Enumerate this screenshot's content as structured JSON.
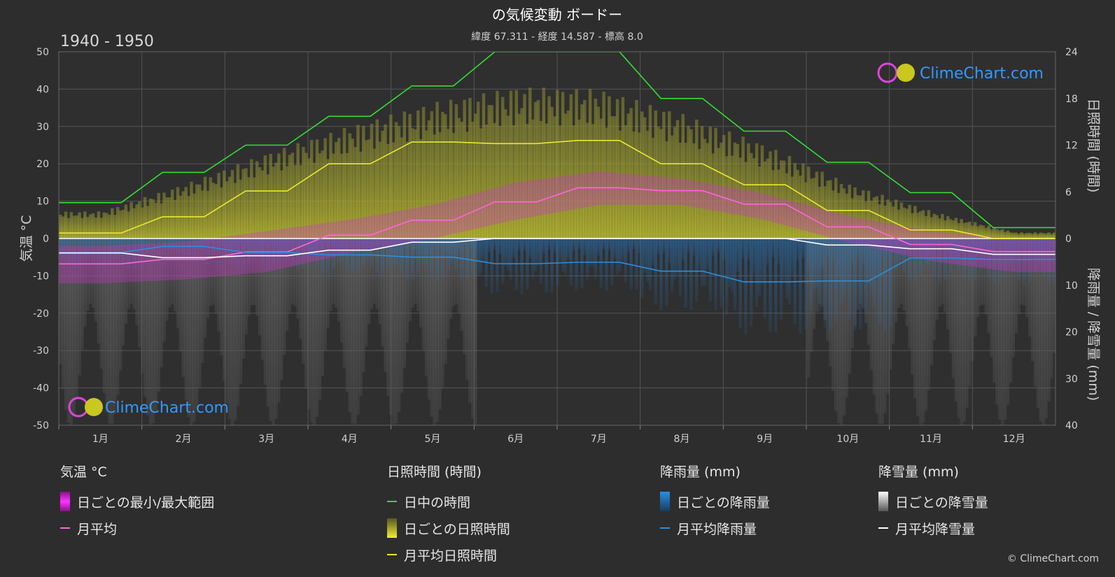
{
  "title": "の気候変動 ボードー",
  "subtitle": "緯度 67.311 - 経度 14.587 - 標高 8.0",
  "period": "1940 - 1950",
  "logo_text": "ClimeChart.com",
  "copyright": "© ClimeChart.com",
  "colors": {
    "background": "#2d2d2d",
    "daylight": "#33dd33",
    "sunshine_avg": "#e8e830",
    "sunshine_bar": "#b0b030",
    "temp_avg": "#ff66dd",
    "temp_range": "#cc33cc",
    "rain_avg": "#2a8fe0",
    "rain_bar": "#2a7fc8",
    "snow_avg": "#ffffff",
    "snow_bar": "#a0a0a0",
    "logo": "#3399ff"
  },
  "chart_data": {
    "type": "line",
    "months": [
      "1月",
      "2月",
      "3月",
      "4月",
      "5月",
      "6月",
      "7月",
      "8月",
      "9月",
      "10月",
      "11月",
      "12月"
    ],
    "left_axis": {
      "label": "気温 °C",
      "ticks": [
        50,
        40,
        30,
        20,
        10,
        0,
        -10,
        -20,
        -30,
        -40,
        -50
      ],
      "ylim": [
        -50,
        50
      ]
    },
    "right_axis_top": {
      "label": "日照時間 (時間)",
      "ticks": [
        24,
        18,
        12,
        6,
        0
      ],
      "ylim": [
        0,
        24
      ]
    },
    "right_axis_bottom": {
      "label": "降雨量 / 降雪量 (mm)",
      "ticks": [
        0,
        10,
        20,
        30,
        40
      ],
      "ylim": [
        0,
        40
      ]
    },
    "series": [
      {
        "name": "日中の時間",
        "unit": "hours",
        "values": [
          4.6,
          8.5,
          12.0,
          15.7,
          19.6,
          24.0,
          24.0,
          18.0,
          13.8,
          9.8,
          5.9,
          1.4
        ]
      },
      {
        "name": "月平均日照時間",
        "unit": "hours",
        "values": [
          0.7,
          2.8,
          6.1,
          9.6,
          12.4,
          12.2,
          12.6,
          9.6,
          6.9,
          3.6,
          1.1,
          0.0
        ]
      },
      {
        "name": "月平均",
        "unit": "°C",
        "values": [
          -6.8,
          -5.6,
          -3.6,
          0.9,
          4.9,
          9.8,
          13.6,
          12.8,
          9.2,
          3.1,
          -1.6,
          -3.5
        ]
      },
      {
        "name": "月平均降雨量",
        "unit": "mm",
        "values": [
          3.0,
          1.7,
          3.0,
          3.5,
          4.0,
          5.4,
          5.1,
          7.0,
          9.3,
          9.1,
          4.2,
          4.5
        ]
      },
      {
        "name": "月平均降雪量",
        "unit": "mm",
        "values": [
          3.1,
          4.1,
          3.7,
          2.5,
          0.8,
          0.0,
          0.0,
          0.0,
          0.0,
          1.4,
          2.2,
          3.4
        ]
      }
    ],
    "daily_temp_range": {
      "name": "日ごとの最小/最大範囲",
      "min": [
        -12,
        -11,
        -9,
        -4,
        0,
        5,
        9,
        9,
        5,
        -1,
        -6,
        -9
      ],
      "max": [
        -2,
        -1,
        2,
        5,
        9,
        15,
        18,
        16,
        12,
        6,
        2,
        0
      ]
    },
    "daily_sunshine_envelope": {
      "name": "日ごとの日照時間",
      "max_hours": [
        3.5,
        7,
        11,
        14.5,
        17.5,
        19.5,
        19.2,
        16,
        12,
        7,
        3.5,
        0.8
      ]
    },
    "legend": {
      "groups": [
        {
          "header": "気温 °C",
          "items": [
            "日ごとの最小/最大範囲",
            "月平均"
          ]
        },
        {
          "header": "日照時間 (時間)",
          "items": [
            "日中の時間",
            "日ごとの日照時間",
            "月平均日照時間"
          ]
        },
        {
          "header": "降雨量 (mm)",
          "items": [
            "日ごとの降雨量",
            "月平均降雨量"
          ]
        },
        {
          "header": "降雪量 (mm)",
          "items": [
            "日ごとの降雪量",
            "月平均降雪量"
          ]
        }
      ]
    },
    "grid": true
  }
}
